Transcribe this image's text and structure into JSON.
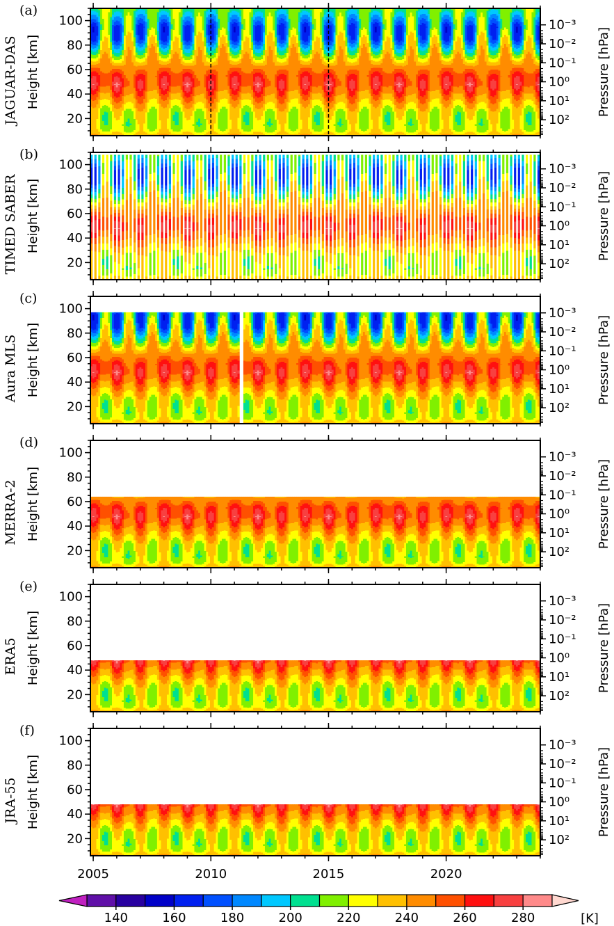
{
  "chart_data": {
    "type": "contour",
    "xlim": [
      2004.88,
      2024.0
    ],
    "xticks": [
      2005,
      2010,
      2015,
      2020
    ],
    "ylim": [
      6,
      110
    ],
    "yticks": [
      20,
      40,
      60,
      80,
      100
    ],
    "ylabel": "Height [km]",
    "y2lim": [
      690,
      0.000135
    ],
    "y2log": true,
    "y2ticks": [
      {
        "value": 0.001,
        "label": "10⁻³"
      },
      {
        "value": 0.01,
        "label": "10⁻²"
      },
      {
        "value": 0.1,
        "label": "10⁻¹"
      },
      {
        "value": 1,
        "label": "10⁰"
      },
      {
        "value": 10,
        "label": "10¹"
      },
      {
        "value": 100,
        "label": "10²"
      }
    ],
    "y2label": "Pressure [hPa]",
    "panels": [
      {
        "label": "(a)",
        "name": "JAGUAR-DAS",
        "dashed_x": [
          2010,
          2015
        ]
      },
      {
        "label": "(b)",
        "name": "TIMED SABER"
      },
      {
        "label": "(c)",
        "name": "Aura MLS"
      },
      {
        "label": "(d)",
        "name": "MERRA-2"
      },
      {
        "label": "(e)",
        "name": "ERA5"
      },
      {
        "label": "(f)",
        "name": "JRA-55"
      }
    ],
    "colorbar": {
      "levels": [
        130,
        140,
        150,
        160,
        170,
        180,
        190,
        200,
        210,
        220,
        230,
        240,
        250,
        260,
        270,
        280,
        290
      ],
      "colors": [
        "#c020c0",
        "#6010a8",
        "#2800a0",
        "#0000c8",
        "#0020f0",
        "#0050ff",
        "#0088ff",
        "#00c8ff",
        "#00e090",
        "#80f000",
        "#ffff00",
        "#ffc000",
        "#ff8c00",
        "#ff5000",
        "#ff1010",
        "#f84040",
        "#ff8a8a",
        "#ffd8d0"
      ],
      "ticks": [
        140,
        160,
        180,
        200,
        220,
        240,
        260,
        280
      ],
      "unit": "[K]"
    }
  }
}
